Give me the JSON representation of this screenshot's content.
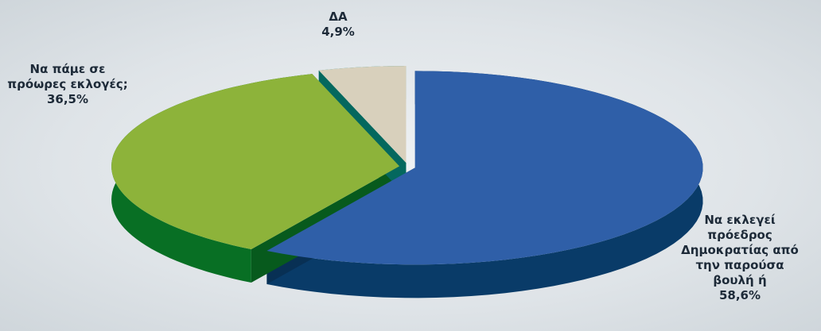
{
  "chart_data": {
    "type": "pie",
    "categories": [
      "Να εκλεγεί πρόεδρος Δημοκρατίας από την παρούσα βουλή ή",
      "Να πάμε σε πρόωρες εκλογές;",
      "ΔΑ"
    ],
    "values": [
      58.6,
      36.5,
      4.9
    ],
    "value_labels": [
      "58,6%",
      "36,5%",
      "4,9%"
    ],
    "colors": [
      "#2f5fa8",
      "#8db33a",
      "#d8d0bc"
    ]
  }
}
